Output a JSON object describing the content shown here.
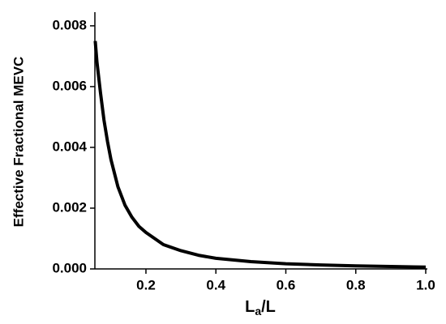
{
  "chart_data": {
    "type": "line",
    "y_label": "Effective Fractional MEVC",
    "x_label": [
      "L",
      "a",
      "/L"
    ],
    "x": [
      0.055,
      0.06,
      0.07,
      0.08,
      0.09,
      0.1,
      0.12,
      0.14,
      0.16,
      0.18,
      0.2,
      0.25,
      0.3,
      0.35,
      0.4,
      0.5,
      0.6,
      0.7,
      0.8,
      0.9,
      1.0
    ],
    "series": [
      {
        "color": "#000000",
        "values": [
          0.0075,
          0.0068,
          0.0058,
          0.0049,
          0.0042,
          0.0036,
          0.0027,
          0.0021,
          0.0017,
          0.0014,
          0.0012,
          0.0008,
          0.0006,
          0.00045,
          0.00035,
          0.00024,
          0.00017,
          0.00013,
          0.0001,
          8e-05,
          6e-05
        ]
      }
    ],
    "xlim": [
      0.054,
      1.0
    ],
    "ylim": [
      0,
      0.00845
    ],
    "xticks": [
      0.2,
      0.4,
      0.6,
      0.8,
      {
        "value": 1.0,
        "label": "1.0"
      }
    ],
    "yticks": [
      {
        "value": 0,
        "label": "0.000"
      },
      {
        "value": 0.002,
        "label": "0.002"
      },
      {
        "value": 0.004,
        "label": "0.004"
      },
      {
        "value": 0.006,
        "label": "0.006"
      },
      {
        "value": 0.008,
        "label": "0.008"
      }
    ],
    "grid": false
  }
}
